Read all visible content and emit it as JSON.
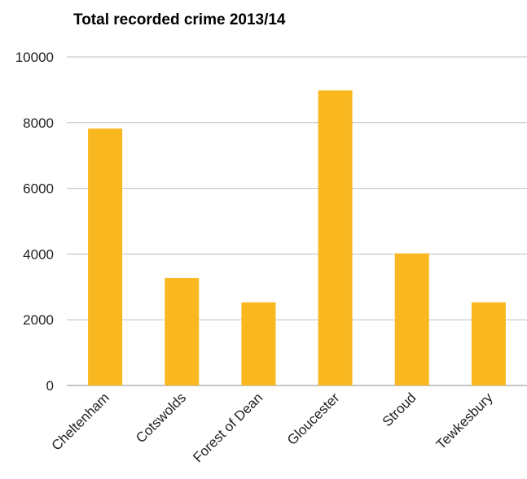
{
  "chart_data": {
    "type": "bar",
    "title": "Total recorded crime 2013/14",
    "xlabel": "",
    "ylabel": "",
    "categories": [
      "Cheltenham",
      "Cotswolds",
      "Forest of Dean",
      "Gloucester",
      "Stroud",
      "Tewkesbury"
    ],
    "values": [
      7820,
      3270,
      2530,
      8980,
      4020,
      2530
    ],
    "ylim": [
      0,
      10000
    ],
    "yticks": [
      "0",
      "2000",
      "4000",
      "6000",
      "8000",
      "10000"
    ],
    "grid": true,
    "legend": "none",
    "bar_color": "#F9B81F"
  }
}
